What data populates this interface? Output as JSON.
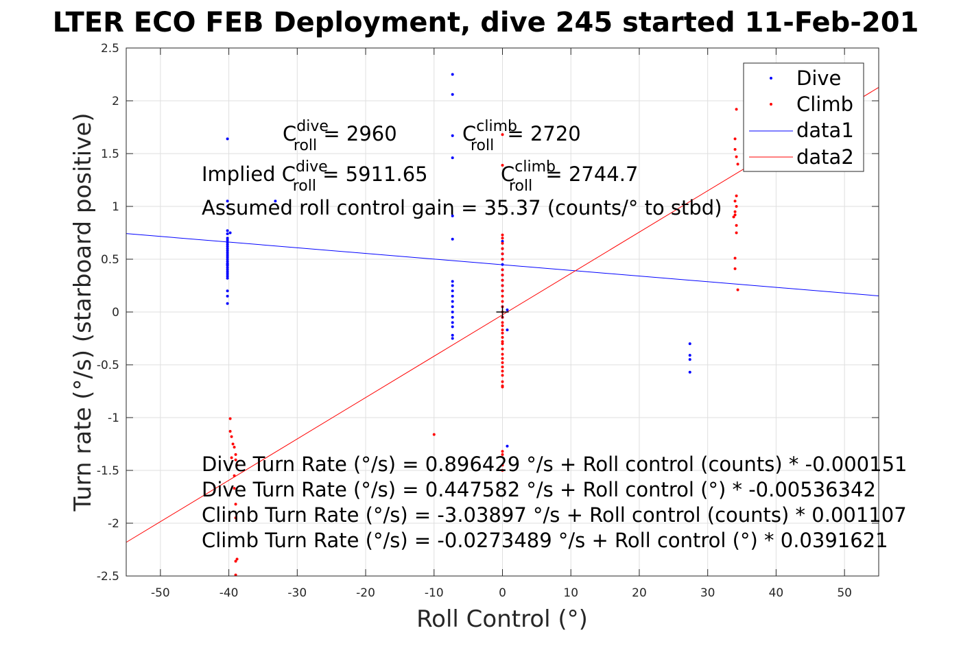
{
  "chart_data": {
    "type": "scatter",
    "title": "LTER ECO FEB Deployment, dive 245 started 11-Feb-201",
    "xlabel": "Roll Control (°)",
    "ylabel": "Turn rate (°/s) (starboard positive)",
    "xlim": [
      -55,
      55
    ],
    "ylim": [
      -2.5,
      2.5
    ],
    "xticks": [
      -50,
      -40,
      -30,
      -20,
      -10,
      0,
      10,
      20,
      30,
      40,
      50
    ],
    "yticks": [
      -2.5,
      -2,
      -1.5,
      -1,
      -0.5,
      0,
      0.5,
      1,
      1.5,
      2,
      2.5
    ],
    "xtick_labels": [
      "-50",
      "-40",
      "-30",
      "-20",
      "-10",
      "0",
      "10",
      "20",
      "30",
      "40",
      "50"
    ],
    "ytick_labels": [
      "-2.5",
      "-2",
      "-1.5",
      "-1",
      "-0.5",
      "0",
      "0.5",
      "1",
      "1.5",
      "2",
      "2.5"
    ],
    "grid": true,
    "legend_position": "top-right",
    "series": [
      {
        "name": "Dive",
        "color": "#0000ff",
        "x": [
          -40.2,
          -40.2,
          -40.2,
          -40.2,
          -40.2,
          -40.2,
          -40.2,
          -40.2,
          -40.2,
          -40.2,
          -40.2,
          -40.2,
          -40.2,
          -40.2,
          -40.2,
          -40.2,
          -40.2,
          -40.2,
          -40.2,
          -40.2,
          -40.2,
          -40.2,
          -40.2,
          -40.2,
          -40.2,
          -40.2,
          -40.2,
          -40.2,
          -40.2,
          -39.8,
          -33.2,
          -7.3,
          -7.3,
          -7.3,
          -7.3,
          -7.3,
          -7.3,
          -7.3,
          -7.3,
          -7.3,
          -7.3,
          -7.3,
          -7.3,
          -7.3,
          -7.3,
          -7.3,
          -7.3,
          -7.3,
          -7.3,
          0,
          0,
          0,
          0,
          0,
          0,
          0,
          0,
          0,
          0,
          0,
          0,
          0.7,
          0.7,
          0.7,
          27.4,
          27.4,
          27.4,
          27.4
        ],
        "y": [
          1.64,
          1.05,
          1.0,
          0.77,
          0.74,
          0.7,
          0.68,
          0.66,
          0.64,
          0.62,
          0.6,
          0.58,
          0.56,
          0.54,
          0.52,
          0.5,
          0.48,
          0.46,
          0.44,
          0.42,
          0.4,
          0.38,
          0.36,
          0.34,
          0.32,
          0.2,
          0.15,
          0.08,
          0.45,
          0.75,
          1.05,
          2.25,
          2.06,
          1.67,
          1.46,
          0.91,
          0.69,
          0.29,
          0.25,
          0.2,
          0.15,
          0.1,
          0.05,
          0.0,
          -0.05,
          -0.1,
          -0.14,
          -0.22,
          -0.25,
          0.67,
          0.6,
          0.55,
          0.5,
          0.45,
          0.4,
          0.35,
          0.3,
          0.25,
          0.2,
          0.05,
          -0.05,
          0.02,
          -0.17,
          -1.27,
          -0.3,
          -0.41,
          -0.45,
          -0.57
        ]
      },
      {
        "name": "Climb",
        "color": "#ff0000",
        "x": [
          -39.8,
          -39.8,
          -39.6,
          -39.4,
          -39.2,
          -39.0,
          -39.0,
          -38.8,
          -39.6,
          -39.2,
          -39.2,
          -39.0,
          -39.0,
          -38.8,
          -39.0,
          -39.0,
          -10.0,
          0,
          0,
          0,
          0,
          0,
          0,
          0,
          0,
          0,
          0,
          0,
          0,
          0,
          0,
          0,
          0,
          0,
          0,
          0,
          0,
          0,
          0,
          0,
          0,
          0,
          0,
          0,
          0,
          0,
          0,
          0,
          0,
          0,
          0,
          0,
          0,
          0,
          0,
          0,
          34.2,
          34.0,
          34.0,
          34.2,
          34.4,
          34.2,
          34.0,
          34.2,
          34.0,
          34.0,
          33.8,
          34.2,
          34.2,
          34.0,
          34.0
        ],
        "y": [
          -1.01,
          -1.13,
          -1.18,
          -1.25,
          -1.28,
          -1.35,
          -1.4,
          -1.45,
          -1.38,
          -1.55,
          -1.67,
          -1.82,
          -1.95,
          -2.34,
          -2.36,
          -2.49,
          -1.16,
          1.68,
          1.39,
          0.73,
          0.7,
          0.65,
          0.6,
          0.55,
          0.5,
          0.4,
          0.35,
          0.3,
          0.25,
          0.2,
          0.15,
          0.1,
          0.05,
          0.0,
          -0.05,
          -0.1,
          -0.13,
          -0.17,
          -0.2,
          -0.24,
          -0.28,
          -0.3,
          -0.35,
          -0.4,
          -0.44,
          -0.48,
          -0.52,
          -0.56,
          -0.6,
          -0.66,
          -0.7,
          -0.71,
          -1.32,
          -1.35,
          -1.45,
          -1.5,
          1.92,
          1.64,
          1.54,
          1.47,
          1.4,
          1.1,
          1.05,
          1.0,
          0.95,
          0.92,
          0.9,
          0.82,
          0.75,
          0.51,
          0.41
        ],
        "extra_point": [
          34.4,
          0.21
        ]
      },
      {
        "name": "data1",
        "color": "#0000ff",
        "type": "line",
        "x": [
          -55,
          55
        ],
        "y": [
          0.7425,
          0.1527
        ]
      },
      {
        "name": "data2",
        "color": "#ff0000",
        "type": "line",
        "x": [
          -55,
          55
        ],
        "y": [
          -2.181,
          2.127
        ]
      }
    ],
    "marker": {
      "x": 0,
      "y": 0
    },
    "annotations": {
      "croll_dive_label": "C",
      "croll_dive_sup": "dive",
      "croll_dive_sub": "roll",
      "croll_dive_value": " = 2960",
      "croll_climb_label": "C",
      "croll_climb_sup": "climb",
      "croll_climb_sub": "roll",
      "croll_climb_value": " = 2720",
      "implied_prefix": "Implied C",
      "implied_dive_sup": "dive",
      "implied_dive_sub": "roll",
      "implied_dive_value": " = 5911.65",
      "implied_climb_label": "C",
      "implied_climb_sup": "climb",
      "implied_climb_sub": "roll",
      "implied_climb_value": " = 2744.7",
      "gain_line": "Assumed roll control gain = 35.37 (counts/° to stbd)",
      "fit_lines": [
        "Dive Turn Rate (°/s) = 0.896429 °/s + Roll control (counts) * -0.000151",
        "Dive Turn Rate (°/s) = 0.447582 °/s + Roll control (°) * -0.00536342",
        "Climb Turn Rate (°/s) = -3.03897 °/s + Roll control (counts) * 0.001107",
        "Climb Turn Rate (°/s) = -0.0273489 °/s + Roll control (°) * 0.0391621"
      ]
    }
  }
}
